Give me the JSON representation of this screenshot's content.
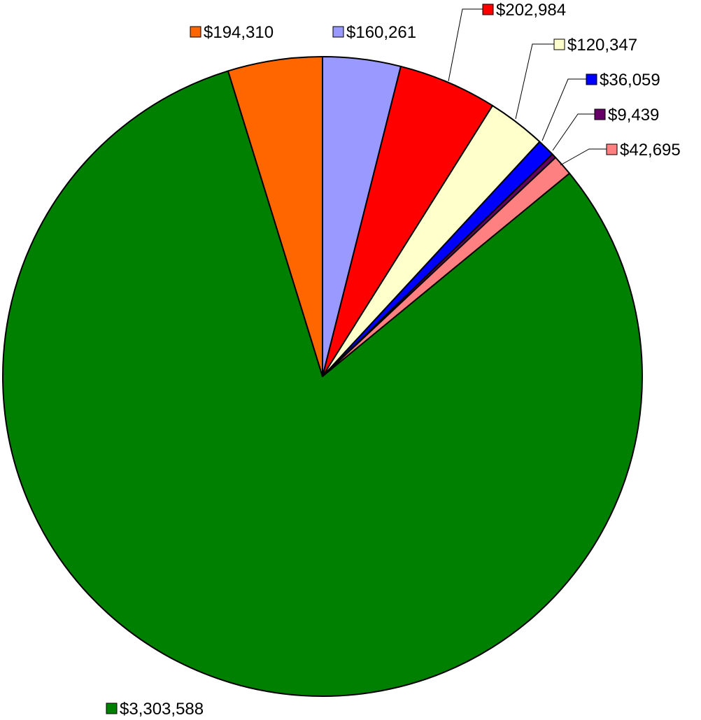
{
  "chart_data": {
    "type": "pie",
    "title": "",
    "slices": [
      {
        "label": "$160,261",
        "value": 160261,
        "color": "#9999FF"
      },
      {
        "label": "$202,984",
        "value": 202984,
        "color": "#FF0000"
      },
      {
        "label": "$120,347",
        "value": 120347,
        "color": "#FFFFCC"
      },
      {
        "label": "$36,059",
        "value": 36059,
        "color": "#0000FF"
      },
      {
        "label": "$9,439",
        "value": 9439,
        "color": "#660066"
      },
      {
        "label": "$42,695",
        "value": 42695,
        "color": "#FF8080"
      },
      {
        "label": "$3,303,588",
        "value": 3303588,
        "color": "#008000"
      },
      {
        "label": "$194,310",
        "value": 194310,
        "color": "#FF6600"
      }
    ],
    "start_angle": "12 o'clock",
    "direction": "clockwise",
    "legend": "none",
    "data_labels": "values with color key, outside slices"
  }
}
